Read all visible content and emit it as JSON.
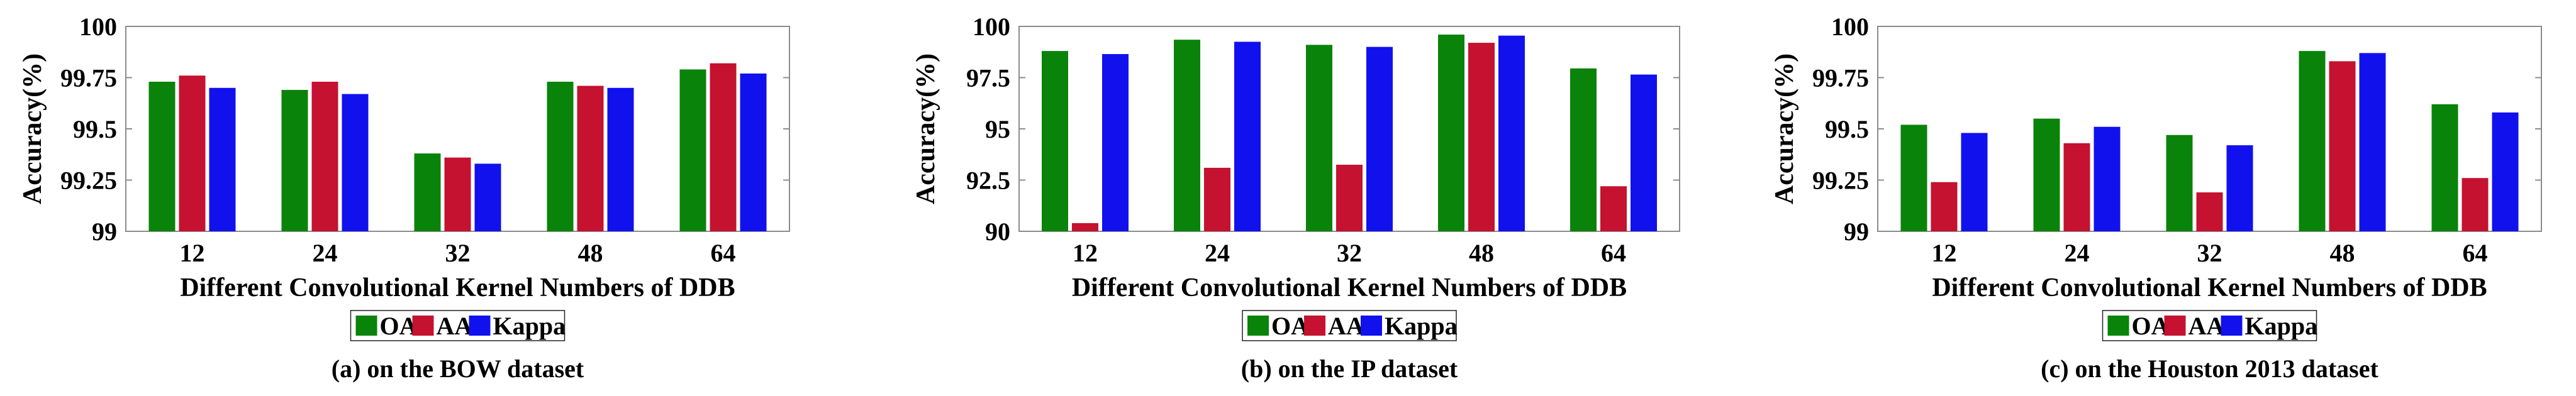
{
  "series_colors": {
    "OA": "#0a830a",
    "AA": "#c41230",
    "Kappa": "#1111ee"
  },
  "chart_data": [
    {
      "type": "bar",
      "categories": [
        "12",
        "24",
        "32",
        "48",
        "64"
      ],
      "series": [
        {
          "name": "OA",
          "values": [
            99.73,
            99.69,
            99.38,
            99.73,
            99.79
          ]
        },
        {
          "name": "AA",
          "values": [
            99.76,
            99.73,
            99.36,
            99.71,
            99.82
          ]
        },
        {
          "name": "Kappa",
          "values": [
            99.7,
            99.67,
            99.33,
            99.7,
            99.77
          ]
        }
      ],
      "ylim": [
        99,
        100
      ],
      "yticks": [
        99,
        99.25,
        99.5,
        99.75,
        100
      ],
      "ytick_labels": [
        "99",
        "99.25",
        "99.5",
        "99.75",
        "100"
      ],
      "xlabel": "Different Convolutional Kernel Numbers of DDB",
      "ylabel": "Accuracy(%)",
      "caption": "(a) on the BOW dataset",
      "legend_position": "bottom-center",
      "grid": false
    },
    {
      "type": "bar",
      "categories": [
        "12",
        "24",
        "32",
        "48",
        "64"
      ],
      "series": [
        {
          "name": "OA",
          "values": [
            98.8,
            99.35,
            99.1,
            99.6,
            97.95
          ]
        },
        {
          "name": "AA",
          "values": [
            90.4,
            93.1,
            93.25,
            99.2,
            92.2
          ]
        },
        {
          "name": "Kappa",
          "values": [
            98.65,
            99.25,
            99.0,
            99.55,
            97.65
          ]
        }
      ],
      "ylim": [
        90,
        100
      ],
      "yticks": [
        90,
        92.5,
        95,
        97.5,
        100
      ],
      "ytick_labels": [
        "90",
        "92.5",
        "95",
        "97.5",
        "100"
      ],
      "xlabel": "Different Convolutional Kernel Numbers of DDB",
      "ylabel": "Accuracy(%)",
      "caption": "(b) on the IP dataset",
      "legend_position": "bottom-center",
      "grid": false
    },
    {
      "type": "bar",
      "categories": [
        "12",
        "24",
        "32",
        "48",
        "64"
      ],
      "series": [
        {
          "name": "OA",
          "values": [
            99.52,
            99.55,
            99.47,
            99.88,
            99.62
          ]
        },
        {
          "name": "AA",
          "values": [
            99.24,
            99.43,
            99.19,
            99.83,
            99.26
          ]
        },
        {
          "name": "Kappa",
          "values": [
            99.48,
            99.51,
            99.42,
            99.87,
            99.58
          ]
        }
      ],
      "ylim": [
        99,
        100
      ],
      "yticks": [
        99,
        99.25,
        99.5,
        99.75,
        100
      ],
      "ytick_labels": [
        "99",
        "99.25",
        "99.5",
        "99.75",
        "100"
      ],
      "xlabel": "Different Convolutional Kernel Numbers of DDB",
      "ylabel": "Accuracy(%)",
      "caption": "(c) on the Houston 2013 dataset",
      "legend_position": "bottom-center",
      "grid": false
    }
  ]
}
